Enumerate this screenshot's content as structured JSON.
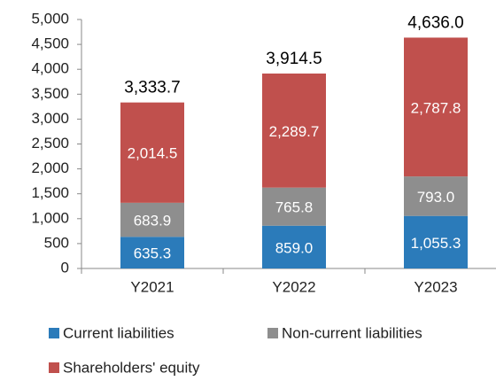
{
  "chart_data": {
    "type": "stacked_bar",
    "categories": [
      "Y2021",
      "Y2022",
      "Y2023"
    ],
    "series": [
      {
        "name": "Current liabilities",
        "color": "#2b7bba",
        "values": [
          635.3,
          859.0,
          1055.3
        ],
        "value_labels": [
          "635.3",
          "859.0",
          "1,055.3"
        ]
      },
      {
        "name": "Non-current liabilities",
        "color": "#8e8e8e",
        "values": [
          683.9,
          765.8,
          793.0
        ],
        "value_labels": [
          "683.9",
          "765.8",
          "793.0"
        ]
      },
      {
        "name": "Shareholders' equity",
        "color": "#c0504d",
        "values": [
          2014.5,
          2289.7,
          2787.8
        ],
        "value_labels": [
          "2,014.5",
          "2,289.7",
          "2,787.8"
        ]
      }
    ],
    "totals": [
      3333.7,
      3914.5,
      4636.0
    ],
    "total_labels": [
      "3,333.7",
      "3,914.5",
      "4,636.0"
    ],
    "ylim": [
      0,
      5000
    ],
    "yticks": [
      0,
      500,
      {
        "value": 1000,
        "label": "1,000"
      },
      {
        "value": 1500,
        "label": "1,500"
      },
      {
        "value": 2000,
        "label": "2,000"
      },
      {
        "value": 2500,
        "label": "2,500"
      },
      {
        "value": 3000,
        "label": "3,000"
      },
      {
        "value": 3500,
        "label": "3,500"
      },
      {
        "value": 4000,
        "label": "4,000"
      },
      {
        "value": 4500,
        "label": "4,500"
      },
      {
        "value": 5000,
        "label": "5,000"
      }
    ],
    "grid": false
  }
}
